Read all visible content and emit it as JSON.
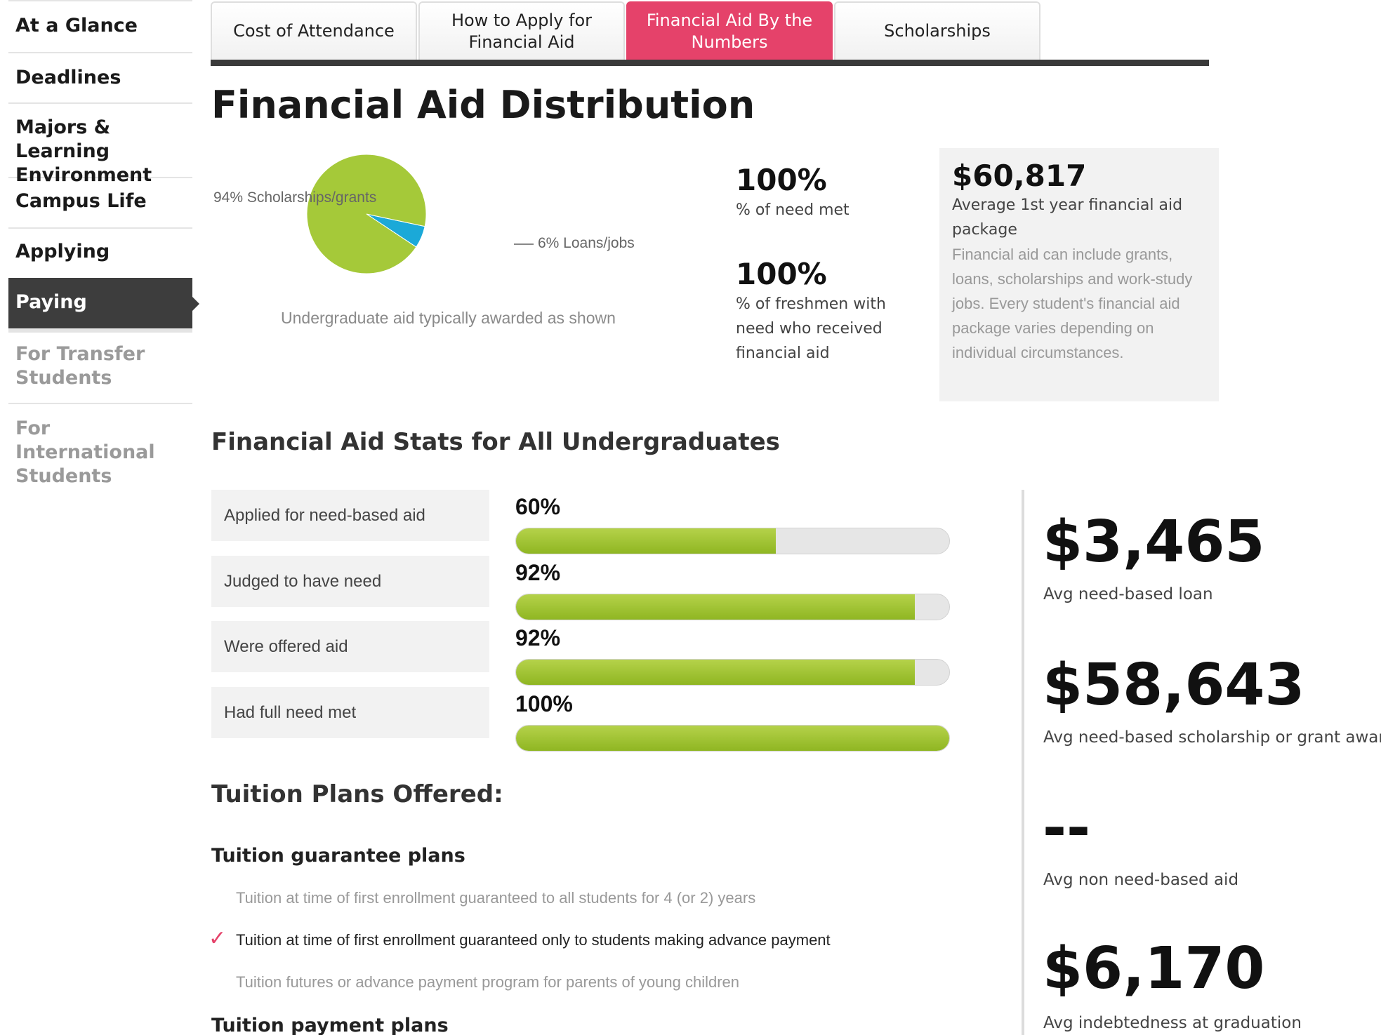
{
  "sidebar": {
    "items": [
      {
        "label": "At a Glance"
      },
      {
        "label": "Deadlines"
      },
      {
        "label": "Majors & Learning Environment"
      },
      {
        "label": "Campus Life"
      },
      {
        "label": "Applying"
      },
      {
        "label": "Paying"
      },
      {
        "label": "For Transfer Students"
      },
      {
        "label": "For International Students"
      }
    ],
    "active": "Paying"
  },
  "tabs": [
    {
      "label": "Cost of Attendance"
    },
    {
      "label": "How to Apply for Financial Aid"
    },
    {
      "label": "Financial Aid By the Numbers"
    },
    {
      "label": "Scholarships"
    }
  ],
  "active_tab": "Financial Aid By the Numbers",
  "page_title": "Financial Aid Distribution",
  "pie": {
    "slices": [
      {
        "label": "94% Scholarships/grants",
        "value": 94,
        "color": "#a5c939"
      },
      {
        "label": "6% Loans/jobs",
        "value": 6,
        "color": "#1ba9d8"
      }
    ],
    "caption": "Undergraduate aid typically awarded as shown"
  },
  "stats": {
    "need_met": {
      "value": "100%",
      "label": "% of need met"
    },
    "freshmen_need": {
      "value": "100%",
      "label": "% of freshmen with need who received financial aid"
    }
  },
  "avg_package": {
    "amount": "$60,817",
    "label": "Average 1st year financial aid package",
    "description": "Financial aid can include grants, loans, scholarships and work-study jobs. Every student's financial aid package varies depending on individual circumstances."
  },
  "undergrad_stats": {
    "title": "Financial Aid Stats for All Undergraduates",
    "rows": [
      {
        "label": "Applied for need-based aid",
        "pct": "60%",
        "value": 60
      },
      {
        "label": "Judged to have need",
        "pct": "92%",
        "value": 92
      },
      {
        "label": "Were offered aid",
        "pct": "92%",
        "value": 92
      },
      {
        "label": "Had full need met",
        "pct": "100%",
        "value": 100
      }
    ],
    "bar_fill_color": "#9dc234"
  },
  "money_stats": [
    {
      "amount": "$3,465",
      "label": "Avg need-based loan"
    },
    {
      "amount": "$58,643",
      "label": "Avg need-based scholarship or grant award"
    },
    {
      "amount": "--",
      "label": "Avg non need-based aid"
    },
    {
      "amount": "$6,170",
      "label": "Avg indebtedness at graduation"
    }
  ],
  "tuition": {
    "title": "Tuition Plans Offered:",
    "guarantee_title": "Tuition guarantee plans",
    "plans": [
      {
        "label": "Tuition at time of first enrollment guaranteed to all students for 4 (or 2) years",
        "checked": false
      },
      {
        "label": "Tuition at time of first enrollment guaranteed only to students making advance payment",
        "checked": true
      },
      {
        "label": "Tuition futures or advance payment program for parents of young children",
        "checked": false
      }
    ],
    "payment_title": "Tuition payment plans",
    "check_glyph": "✓"
  }
}
